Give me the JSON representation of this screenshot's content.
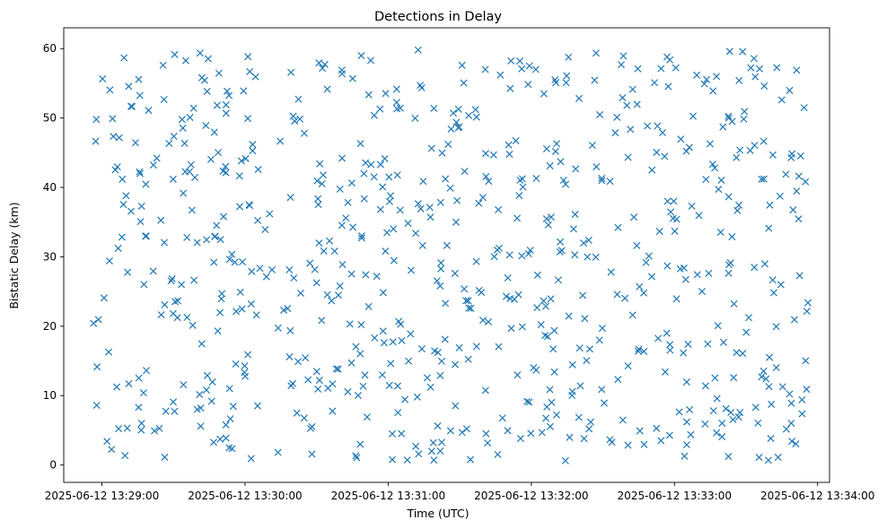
{
  "chart_data": {
    "type": "scatter",
    "title": "Detections in Delay",
    "xlabel": "Time (UTC)",
    "ylabel": "Bistatic Delay (km)",
    "marker": "x",
    "color": "#1f77b4",
    "grid": false,
    "xlim": [
      "2025-06-12 13:28:44",
      "2025-06-12 13:34:05"
    ],
    "ylim": [
      -2.5,
      63
    ],
    "xticks": [
      "2025-06-12 13:29:00",
      "2025-06-12 13:30:00",
      "2025-06-12 13:31:00",
      "2025-06-12 13:32:00",
      "2025-06-12 13:33:00",
      "2025-06-12 13:34:00"
    ],
    "yticks": [
      0,
      10,
      20,
      30,
      40,
      50,
      60
    ],
    "start_time": "2025-06-12 13:28:56",
    "seed": 20250612,
    "duration_s": 300
  }
}
